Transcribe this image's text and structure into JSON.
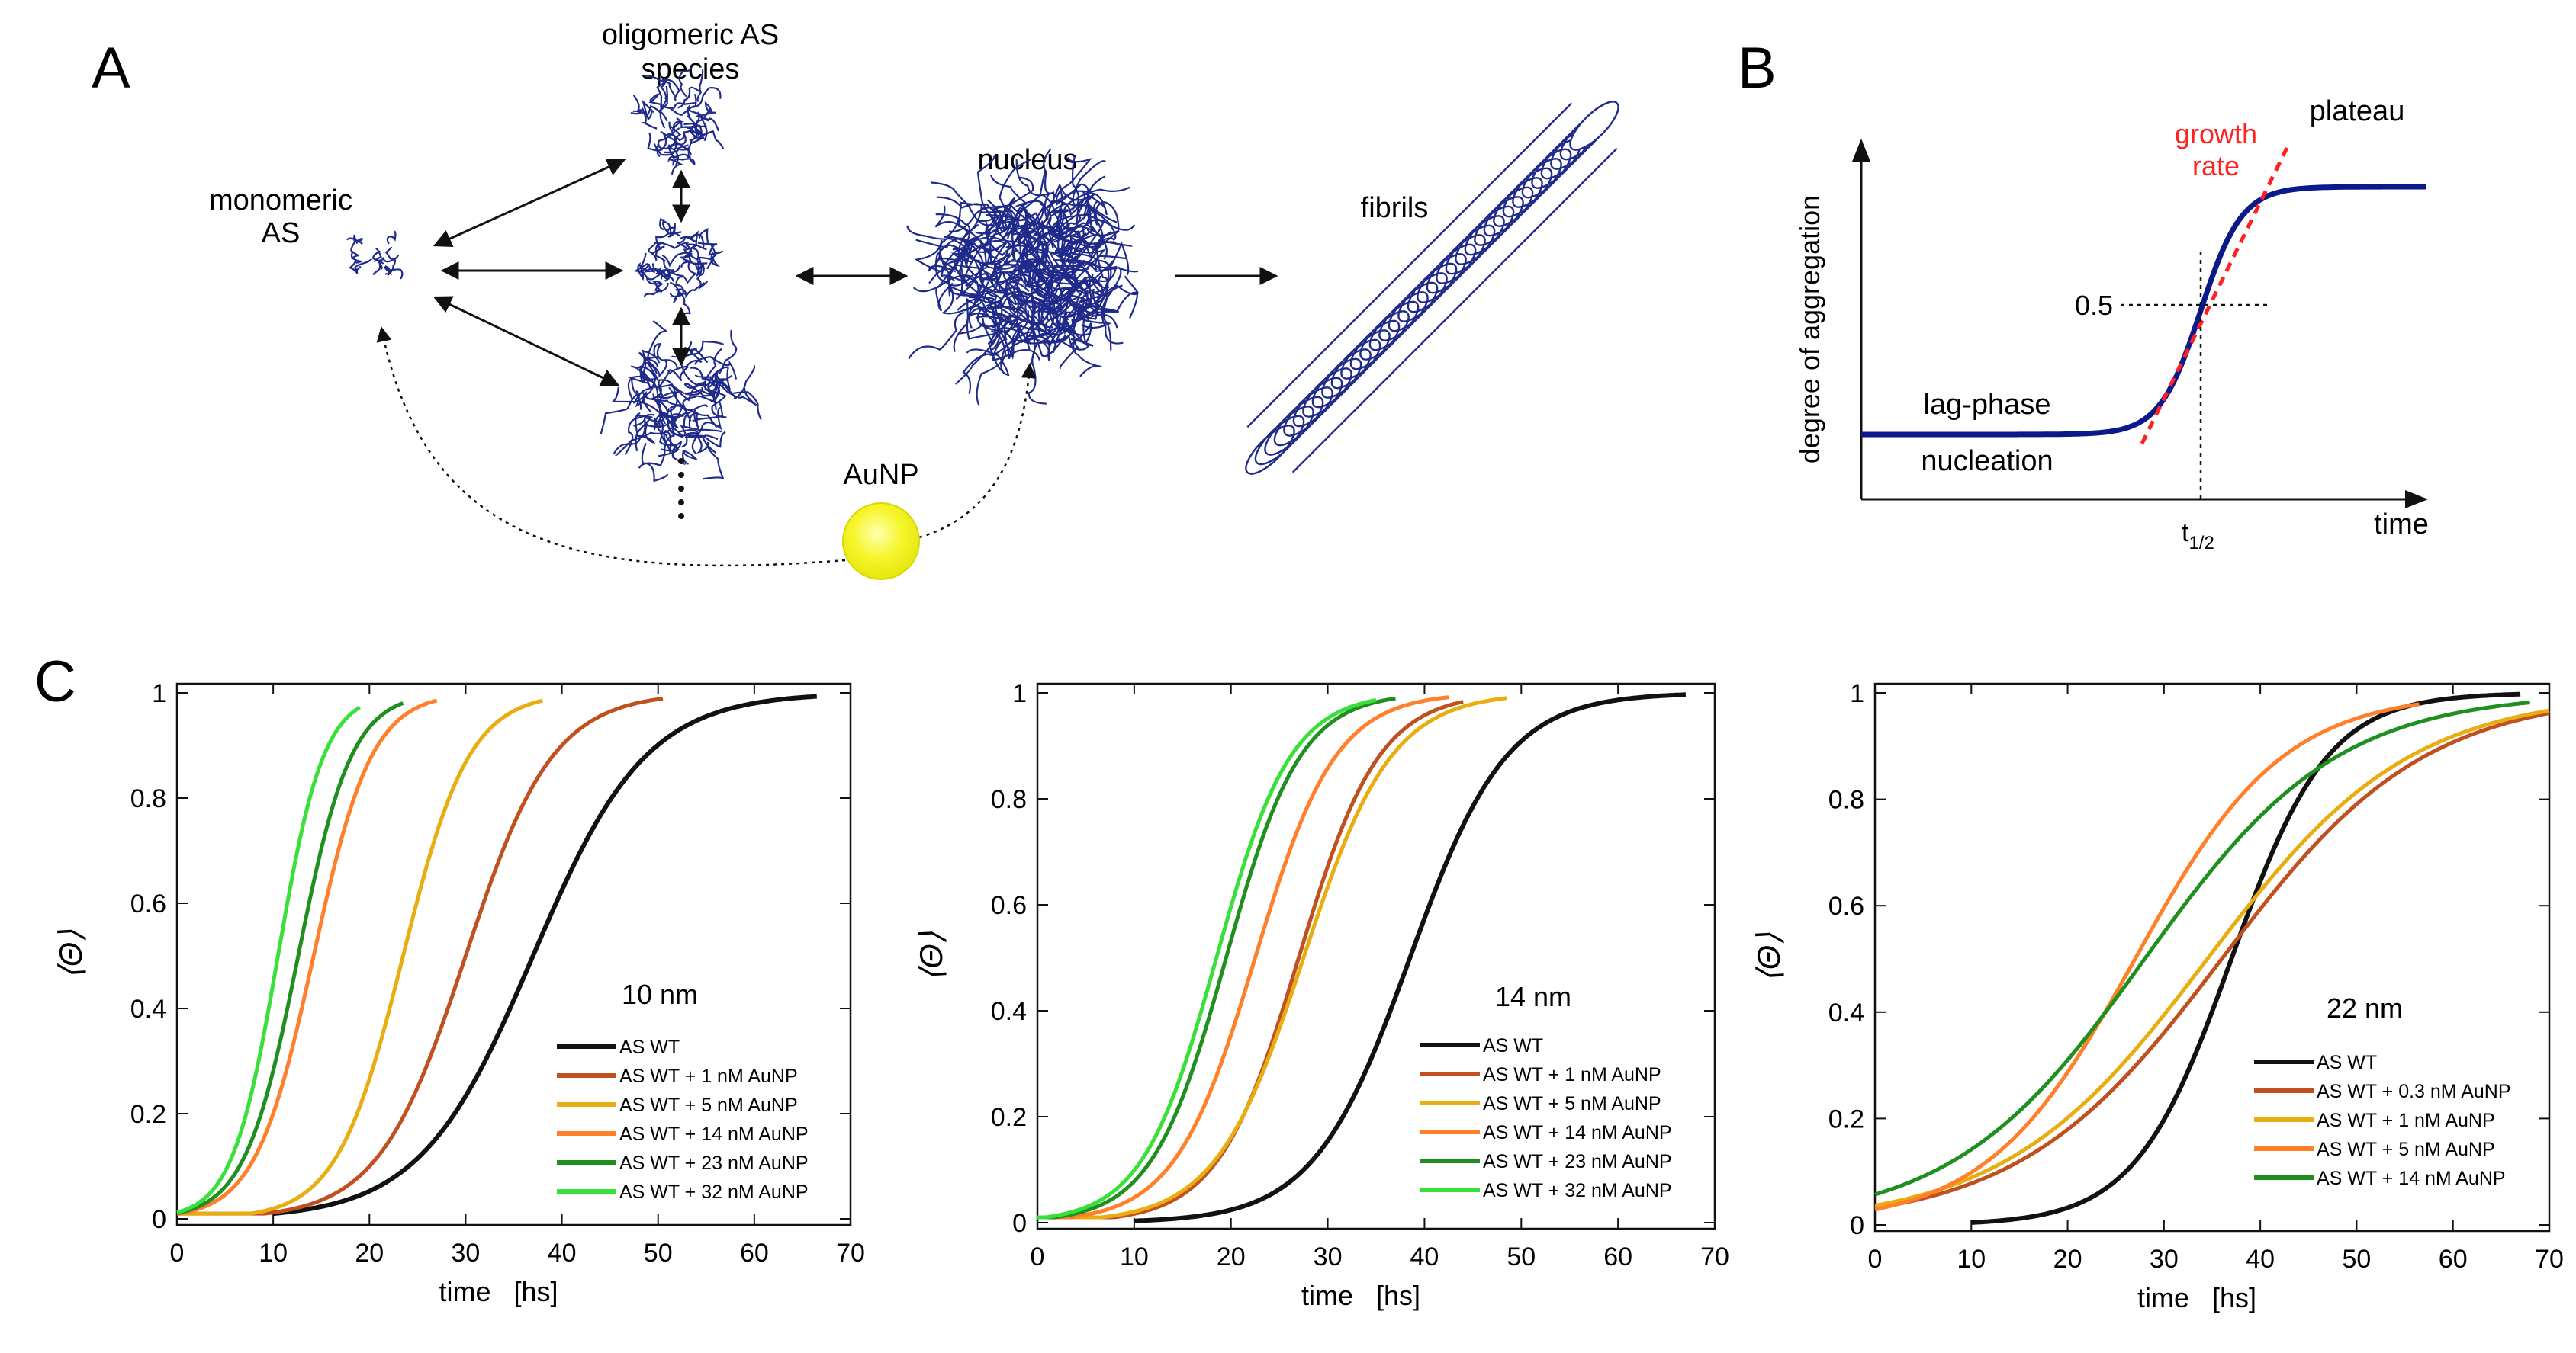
{
  "panel_a": {
    "letter": "A",
    "label_oligomeric_line1": "oligomeric AS",
    "label_oligomeric_line2": "species",
    "label_monomeric_line1": "monomeric",
    "label_monomeric_line2": "AS",
    "label_nucleus": "nucleus",
    "label_fibrils": "fibrils",
    "label_aunp": "AuNP",
    "colors": {
      "protein": "#1f2a8a",
      "aunp": "#f3f321",
      "arrow": "#111111"
    }
  },
  "panel_b": {
    "letter": "B",
    "ylabel": "degree of aggregation",
    "xlabel": "time",
    "label_growth_line1": "growth",
    "label_growth_line2": "rate",
    "label_plateau": "plateau",
    "label_lag": "lag-phase",
    "label_nucleation": "nucleation",
    "label_half": "0.5",
    "label_thalf_main": "t",
    "label_thalf_sub": "1/2",
    "colors": {
      "curve": "#0a1a8a",
      "growth": "#ff2020"
    }
  },
  "panel_c_letter": "C",
  "chart_data": [
    {
      "type": "line",
      "annotation": "10 nm",
      "xlabel": "time",
      "xunit": "[hs]",
      "ylabel": "⟨Θ⟩",
      "xlim": [
        0,
        70
      ],
      "ylim": [
        0,
        1
      ],
      "xticks": [
        0,
        10,
        20,
        30,
        40,
        50,
        60,
        70
      ],
      "yticks": [
        0,
        0.2,
        0.4,
        0.6,
        0.8,
        1
      ],
      "xtick_labels": [
        "0",
        "10",
        "20",
        "30",
        "40",
        "50",
        "60",
        "70"
      ],
      "ytick_labels": [
        "0",
        "0.2",
        "0.4",
        "0.6",
        "0.8",
        "1"
      ],
      "series": [
        {
          "name": "AS WT",
          "color": "#111111",
          "t_half": 37.0,
          "k": 0.17,
          "x_start": 10,
          "x_end": 66.5
        },
        {
          "name": "AS WT + 1 nM AuNP",
          "color": "#c0501f",
          "t_half": 30.0,
          "k": 0.22,
          "x_start": 0,
          "x_end": 50.5
        },
        {
          "name": "AS WT + 5 nM AuNP",
          "color": "#e8ad10",
          "t_half": 23.5,
          "k": 0.29,
          "x_start": 0,
          "x_end": 38
        },
        {
          "name": "AS WT + 14 nM AuNP",
          "color": "#ff7f2a",
          "t_half": 14.2,
          "k": 0.33,
          "x_start": 0,
          "x_end": 27
        },
        {
          "name": "AS WT + 23 nM AuNP",
          "color": "#1f8f1f",
          "t_half": 12.6,
          "k": 0.36,
          "x_start": 0,
          "x_end": 23.5
        },
        {
          "name": "AS WT + 32 nM AuNP",
          "color": "#3ae03a",
          "t_half": 10.5,
          "k": 0.42,
          "x_start": 0,
          "x_end": 19
        }
      ]
    },
    {
      "type": "line",
      "annotation": "14 nm",
      "xlabel": "time",
      "xunit": "[hs]",
      "ylabel": "⟨Θ⟩",
      "xlim": [
        0,
        70
      ],
      "ylim": [
        0,
        1
      ],
      "xticks": [
        0,
        10,
        20,
        30,
        40,
        50,
        60,
        70
      ],
      "yticks": [
        0,
        0.2,
        0.4,
        0.6,
        0.8,
        1
      ],
      "xtick_labels": [
        "0",
        "10",
        "20",
        "30",
        "40",
        "50",
        "60",
        "70"
      ],
      "ytick_labels": [
        "0",
        "0.2",
        "0.4",
        "0.6",
        "0.8",
        "1"
      ],
      "series": [
        {
          "name": "AS WT",
          "color": "#111111",
          "t_half": 38.5,
          "k": 0.2,
          "x_start": 10,
          "x_end": 67
        },
        {
          "name": "AS WT + 1 nM AuNP",
          "color": "#c0501f",
          "t_half": 27.0,
          "k": 0.24,
          "x_start": 0,
          "x_end": 44
        },
        {
          "name": "AS WT + 5 nM AuNP",
          "color": "#e8ad10",
          "t_half": 27.5,
          "k": 0.22,
          "x_start": 0,
          "x_end": 48.5
        },
        {
          "name": "AS WT + 14 nM AuNP",
          "color": "#ff7f2a",
          "t_half": 22.5,
          "k": 0.24,
          "x_start": 0,
          "x_end": 42.5
        },
        {
          "name": "AS WT + 23 nM AuNP",
          "color": "#1f8f1f",
          "t_half": 19.5,
          "k": 0.26,
          "x_start": 0,
          "x_end": 37
        },
        {
          "name": "AS WT + 32 nM AuNP",
          "color": "#3ae03a",
          "t_half": 18.5,
          "k": 0.26,
          "x_start": 0,
          "x_end": 35
        }
      ]
    },
    {
      "type": "line",
      "annotation": "22 nm",
      "xlabel": "time",
      "xunit": "[hs]",
      "ylabel": "⟨Θ⟩",
      "xlim": [
        0,
        70
      ],
      "ylim": [
        0,
        1
      ],
      "xticks": [
        0,
        10,
        20,
        30,
        40,
        50,
        60,
        70
      ],
      "yticks": [
        0,
        0.2,
        0.4,
        0.6,
        0.8,
        1
      ],
      "xtick_labels": [
        "0",
        "10",
        "20",
        "30",
        "40",
        "50",
        "60",
        "70"
      ],
      "ytick_labels": [
        "0",
        "0.2",
        "0.4",
        "0.6",
        "0.8",
        "1"
      ],
      "series": [
        {
          "name": "AS WT",
          "color": "#111111",
          "t_half": 37.0,
          "k": 0.2,
          "x_start": 10,
          "x_end": 67
        },
        {
          "name": "AS WT + 0.3 nM AuNP",
          "color": "#c0501f",
          "t_half": 36.0,
          "k": 0.095,
          "x_start": 0,
          "x_end": 70
        },
        {
          "name": "AS WT + 1 nM AuNP",
          "color": "#e8ad10",
          "t_half": 34.5,
          "k": 0.095,
          "x_start": 0,
          "x_end": 70
        },
        {
          "name": "AS WT + 5 nM AuNP",
          "color": "#ff7f2a",
          "t_half": 27.0,
          "k": 0.13,
          "x_start": 0,
          "x_end": 56.5
        },
        {
          "name": "AS WT + 14 nM AuNP",
          "color": "#1f8f1f",
          "t_half": 28.0,
          "k": 0.1,
          "x_start": 0,
          "x_end": 68
        }
      ]
    }
  ]
}
